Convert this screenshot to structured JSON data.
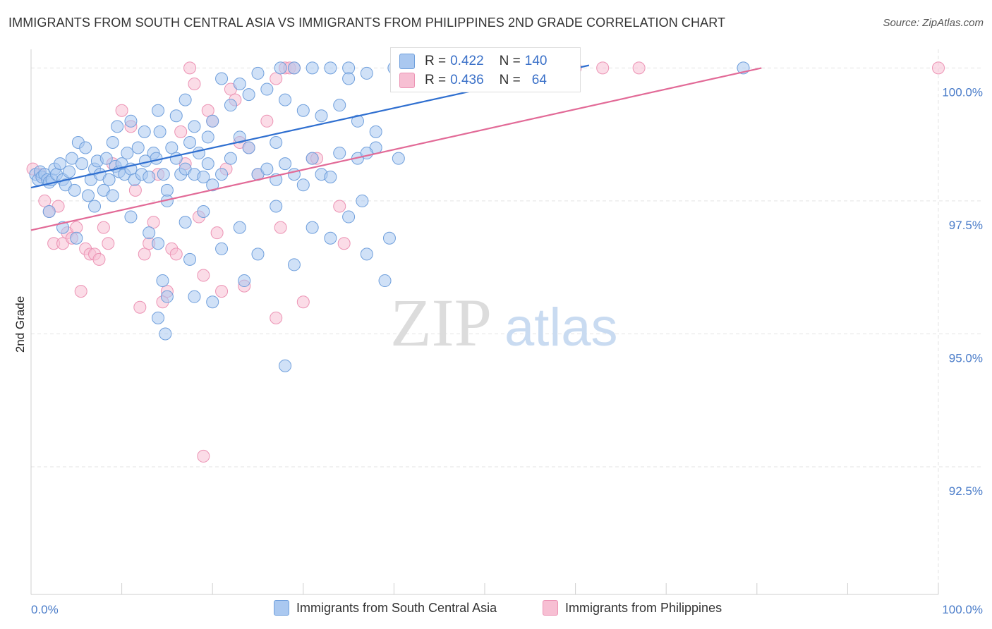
{
  "title": "IMMIGRANTS FROM SOUTH CENTRAL ASIA VS IMMIGRANTS FROM PHILIPPINES 2ND GRADE CORRELATION CHART",
  "source": "Source: ZipAtlas.com",
  "watermark": {
    "zip": "ZIP",
    "atlas": "atlas"
  },
  "colors": {
    "blue_fill": "#aac8f0",
    "blue_stroke": "#6f9fdc",
    "blue_line": "#2f6fd0",
    "pink_fill": "#f7bfd3",
    "pink_stroke": "#ec93b4",
    "pink_line": "#e26a97",
    "tick_text": "#4a7cc9",
    "grid": "#e3e3e3"
  },
  "stats": {
    "blue": {
      "r_label": "R =",
      "r_value": "0.422",
      "n_label": "N =",
      "n_value": "140"
    },
    "pink": {
      "r_label": "R =",
      "r_value": "0.436",
      "n_label": "N =",
      "n_value": "64"
    }
  },
  "chart_data": {
    "type": "scatter",
    "xlabel": "",
    "ylabel": "2nd Grade",
    "xlim": [
      0,
      100
    ],
    "ylim": [
      90.1,
      100.35
    ],
    "x_tick_labels": [
      "0.0%",
      "100.0%"
    ],
    "y_ticks": [
      {
        "value": 100.0,
        "label": "100.0%"
      },
      {
        "value": 97.5,
        "label": "97.5%"
      },
      {
        "value": 95.0,
        "label": "95.0%"
      },
      {
        "value": 92.5,
        "label": "92.5%"
      }
    ],
    "grid": true,
    "legend_position": "bottom-center",
    "series": [
      {
        "name": "Immigrants from South Central Asia",
        "color": "#aac8f0",
        "trend": {
          "x0": 0,
          "y0": 97.75,
          "x1": 61.5,
          "y1": 100.05
        },
        "points": [
          [
            0.5,
            98.0
          ],
          [
            0.8,
            97.9
          ],
          [
            1.0,
            98.05
          ],
          [
            1.2,
            97.95
          ],
          [
            1.5,
            98.0
          ],
          [
            1.8,
            97.9
          ],
          [
            2.0,
            97.85
          ],
          [
            2.3,
            97.9
          ],
          [
            2.6,
            98.1
          ],
          [
            2.8,
            98.0
          ],
          [
            3.2,
            98.2
          ],
          [
            3.5,
            97.9
          ],
          [
            3.8,
            97.8
          ],
          [
            4.2,
            98.05
          ],
          [
            4.5,
            98.3
          ],
          [
            4.8,
            97.7
          ],
          [
            5.2,
            98.6
          ],
          [
            5.6,
            98.2
          ],
          [
            6.0,
            98.5
          ],
          [
            6.3,
            97.6
          ],
          [
            6.6,
            97.9
          ],
          [
            7.0,
            98.1
          ],
          [
            7.3,
            98.25
          ],
          [
            7.6,
            98.0
          ],
          [
            8.0,
            97.7
          ],
          [
            8.3,
            98.3
          ],
          [
            8.6,
            97.9
          ],
          [
            9.0,
            98.6
          ],
          [
            9.3,
            98.15
          ],
          [
            9.7,
            98.05
          ],
          [
            10.0,
            98.2
          ],
          [
            10.3,
            98.0
          ],
          [
            10.6,
            98.4
          ],
          [
            11.0,
            98.1
          ],
          [
            11.4,
            97.9
          ],
          [
            11.8,
            98.5
          ],
          [
            12.2,
            98.0
          ],
          [
            12.6,
            98.25
          ],
          [
            13.0,
            97.95
          ],
          [
            13.5,
            98.4
          ],
          [
            13.8,
            98.3
          ],
          [
            14.2,
            98.8
          ],
          [
            14.6,
            98.0
          ],
          [
            15.0,
            97.7
          ],
          [
            15.5,
            98.5
          ],
          [
            16.0,
            98.3
          ],
          [
            16.5,
            98.0
          ],
          [
            17.0,
            98.1
          ],
          [
            17.5,
            98.6
          ],
          [
            18.0,
            98.0
          ],
          [
            18.5,
            98.4
          ],
          [
            19.0,
            97.95
          ],
          [
            19.5,
            98.2
          ],
          [
            20.0,
            97.8
          ],
          [
            21.0,
            98.0
          ],
          [
            22.0,
            98.3
          ],
          [
            23.0,
            98.7
          ],
          [
            24.0,
            98.5
          ],
          [
            25.0,
            98.0
          ],
          [
            26.0,
            98.1
          ],
          [
            27.0,
            97.9
          ],
          [
            28.0,
            98.2
          ],
          [
            29.0,
            98.0
          ],
          [
            30.0,
            97.8
          ],
          [
            31.0,
            98.3
          ],
          [
            32.0,
            98.0
          ],
          [
            33.0,
            97.95
          ],
          [
            34.0,
            98.4
          ],
          [
            36.0,
            98.3
          ],
          [
            38.0,
            98.5
          ],
          [
            2.0,
            97.3
          ],
          [
            3.5,
            97.0
          ],
          [
            5.0,
            96.8
          ],
          [
            7.0,
            97.4
          ],
          [
            9.0,
            97.6
          ],
          [
            11.0,
            97.2
          ],
          [
            13.0,
            96.9
          ],
          [
            15.0,
            97.5
          ],
          [
            17.0,
            97.1
          ],
          [
            19.0,
            97.3
          ],
          [
            21.0,
            96.6
          ],
          [
            23.0,
            97.0
          ],
          [
            25.0,
            96.5
          ],
          [
            27.0,
            97.4
          ],
          [
            29.0,
            96.3
          ],
          [
            31.0,
            97.0
          ],
          [
            33.0,
            96.8
          ],
          [
            35.0,
            97.2
          ],
          [
            37.0,
            96.5
          ],
          [
            39.0,
            96.0
          ],
          [
            14.0,
            96.7
          ],
          [
            14.5,
            96.0
          ],
          [
            15.0,
            95.7
          ],
          [
            14.0,
            95.3
          ],
          [
            14.8,
            95.0
          ],
          [
            17.5,
            96.4
          ],
          [
            18.0,
            95.7
          ],
          [
            20.0,
            95.6
          ],
          [
            23.5,
            96.0
          ],
          [
            28.0,
            94.4
          ],
          [
            9.5,
            98.9
          ],
          [
            11.0,
            99.0
          ],
          [
            12.5,
            98.8
          ],
          [
            14.0,
            99.2
          ],
          [
            16.0,
            99.1
          ],
          [
            18.0,
            98.9
          ],
          [
            20.0,
            99.0
          ],
          [
            22.0,
            99.3
          ],
          [
            24.0,
            99.5
          ],
          [
            26.0,
            99.6
          ],
          [
            28.0,
            99.4
          ],
          [
            30.0,
            99.2
          ],
          [
            32.0,
            99.1
          ],
          [
            34.0,
            99.3
          ],
          [
            36.0,
            99.0
          ],
          [
            38.0,
            98.8
          ],
          [
            37.0,
            98.4
          ],
          [
            27.0,
            98.6
          ],
          [
            19.5,
            98.7
          ],
          [
            17.0,
            99.4
          ],
          [
            21.0,
            99.8
          ],
          [
            23.0,
            99.7
          ],
          [
            25.0,
            99.9
          ],
          [
            27.5,
            100.0
          ],
          [
            29.0,
            100.0
          ],
          [
            31.0,
            100.0
          ],
          [
            33.0,
            100.0
          ],
          [
            35.0,
            100.0
          ],
          [
            37.0,
            99.9
          ],
          [
            40.0,
            100.0
          ],
          [
            42.0,
            100.0
          ],
          [
            44.0,
            99.9
          ],
          [
            46.0,
            100.0
          ],
          [
            48.0,
            99.9
          ],
          [
            50.0,
            100.0
          ],
          [
            78.5,
            100.0
          ],
          [
            36.5,
            97.5
          ],
          [
            39.5,
            96.8
          ],
          [
            40.5,
            98.3
          ],
          [
            35.0,
            99.8
          ]
        ]
      },
      {
        "name": "Immigrants from Philippines",
        "color": "#f7bfd3",
        "trend": {
          "x0": 0,
          "y0": 96.95,
          "x1": 80.5,
          "y1": 100.0
        },
        "points": [
          [
            0.2,
            98.1
          ],
          [
            1.0,
            98.0
          ],
          [
            1.5,
            97.5
          ],
          [
            2.0,
            97.3
          ],
          [
            2.5,
            96.7
          ],
          [
            3.0,
            97.4
          ],
          [
            3.5,
            96.7
          ],
          [
            4.0,
            96.9
          ],
          [
            4.5,
            96.8
          ],
          [
            5.0,
            97.0
          ],
          [
            5.5,
            95.8
          ],
          [
            6.0,
            96.6
          ],
          [
            6.5,
            96.5
          ],
          [
            7.0,
            96.5
          ],
          [
            7.5,
            96.4
          ],
          [
            8.0,
            97.0
          ],
          [
            8.5,
            96.7
          ],
          [
            9.0,
            98.2
          ],
          [
            10.0,
            99.2
          ],
          [
            11.0,
            98.9
          ],
          [
            11.5,
            97.7
          ],
          [
            12.0,
            95.5
          ],
          [
            12.5,
            96.5
          ],
          [
            13.0,
            96.7
          ],
          [
            13.5,
            97.1
          ],
          [
            14.0,
            98.0
          ],
          [
            14.5,
            95.6
          ],
          [
            15.0,
            95.8
          ],
          [
            15.5,
            96.6
          ],
          [
            16.0,
            96.5
          ],
          [
            16.5,
            98.8
          ],
          [
            17.0,
            98.2
          ],
          [
            17.5,
            100.0
          ],
          [
            18.0,
            99.7
          ],
          [
            18.5,
            97.2
          ],
          [
            19.0,
            96.1
          ],
          [
            19.5,
            99.2
          ],
          [
            20.0,
            99.0
          ],
          [
            20.5,
            96.9
          ],
          [
            21.0,
            95.8
          ],
          [
            21.5,
            98.1
          ],
          [
            22.0,
            99.6
          ],
          [
            22.5,
            99.4
          ],
          [
            23.0,
            98.6
          ],
          [
            23.5,
            95.9
          ],
          [
            24.0,
            98.5
          ],
          [
            25.0,
            98.0
          ],
          [
            26.0,
            99.0
          ],
          [
            27.0,
            99.8
          ],
          [
            28.0,
            100.0
          ],
          [
            28.5,
            100.0
          ],
          [
            29.0,
            100.0
          ],
          [
            30.0,
            95.6
          ],
          [
            31.0,
            98.3
          ],
          [
            31.5,
            98.3
          ],
          [
            34.0,
            97.4
          ],
          [
            34.5,
            96.7
          ],
          [
            27.5,
            97.0
          ],
          [
            19.0,
            92.7
          ],
          [
            27.0,
            95.3
          ],
          [
            60.0,
            100.0
          ],
          [
            63.0,
            100.0
          ],
          [
            67.0,
            100.0
          ],
          [
            100.0,
            100.0
          ]
        ]
      }
    ]
  }
}
